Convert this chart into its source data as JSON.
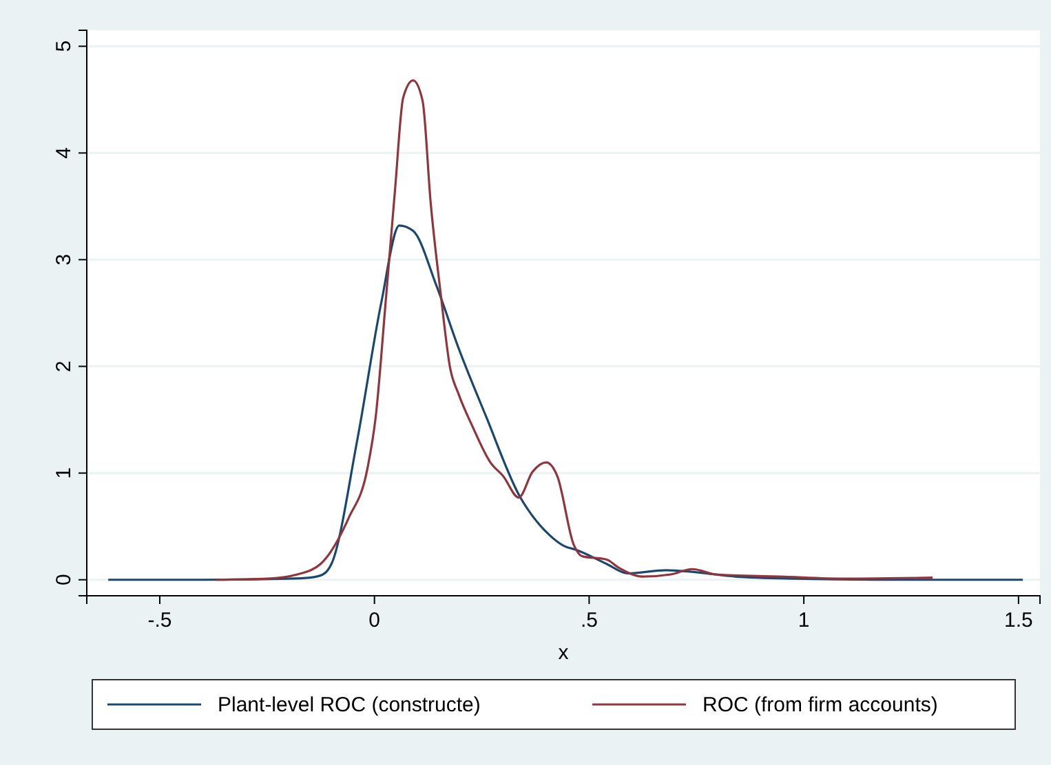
{
  "chart_data": {
    "type": "line",
    "xlabel": "x",
    "xlim": [
      -0.67,
      1.55
    ],
    "xticks": [
      {
        "value": -0.5,
        "label": "-.5"
      },
      0,
      {
        "value": 0.5,
        "label": ".5"
      },
      1,
      1.5
    ],
    "ylim": [
      -0.15,
      5.15
    ],
    "yticks": [
      0,
      1,
      2,
      3,
      4,
      5
    ],
    "grid": "y",
    "legend": "bottom",
    "line_style": "solid",
    "marker": "none",
    "series": [
      {
        "name": "Plant-level ROC (constructe)",
        "color": "#1a476f",
        "x": [
          -0.62,
          -0.4,
          -0.2,
          -0.15,
          -0.12,
          -0.1,
          -0.04,
          0.016,
          0.058,
          0.09,
          0.144,
          0.196,
          0.26,
          0.336,
          0.41,
          0.44,
          0.47,
          0.54,
          0.59,
          0.68,
          0.75,
          0.84,
          0.98,
          1.2,
          1.51
        ],
        "values": [
          0,
          0,
          0.01,
          0.02,
          0.05,
          0.15,
          1.31,
          2.6,
          3.32,
          3.27,
          2.76,
          2.17,
          1.53,
          0.8,
          0.41,
          0.32,
          0.28,
          0.15,
          0.06,
          0.09,
          0.07,
          0.03,
          0.01,
          0,
          0
        ]
      },
      {
        "name": "ROC (from firm accounts)",
        "color": "#90353b",
        "x": [
          -0.37,
          -0.25,
          -0.18,
          -0.125,
          -0.06,
          -0.016,
          0.003,
          0.026,
          0.048,
          0.067,
          0.09,
          0.112,
          0.131,
          0.154,
          0.176,
          0.196,
          0.228,
          0.27,
          0.3,
          0.336,
          0.368,
          0.4,
          0.426,
          0.464,
          0.484,
          0.54,
          0.57,
          0.625,
          0.69,
          0.74,
          0.795,
          0.945,
          1.1,
          1.3
        ],
        "values": [
          0,
          0.01,
          0.05,
          0.15,
          0.58,
          1.05,
          1.53,
          2.6,
          3.66,
          4.52,
          4.68,
          4.49,
          3.53,
          2.69,
          1.99,
          1.74,
          1.44,
          1.1,
          0.97,
          0.77,
          1.01,
          1.1,
          0.97,
          0.33,
          0.22,
          0.19,
          0.11,
          0.03,
          0.05,
          0.1,
          0.05,
          0.03,
          0.01,
          0.02
        ]
      }
    ]
  }
}
